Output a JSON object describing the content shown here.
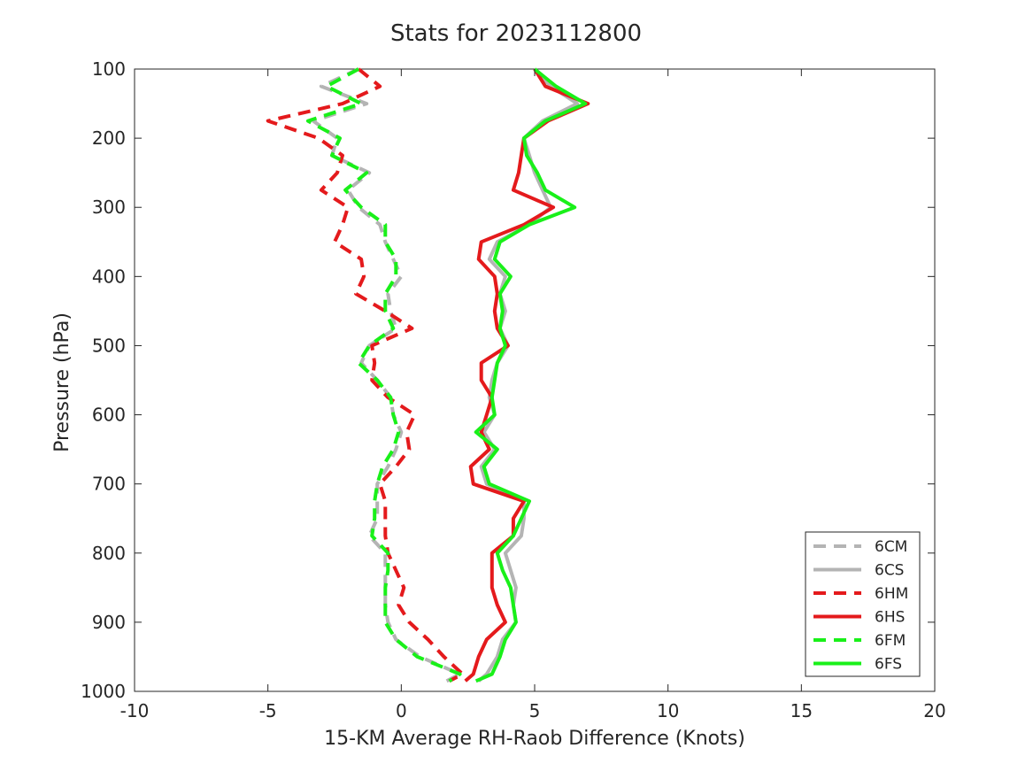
{
  "chart_data": {
    "type": "line",
    "title": "Stats for 2023112800",
    "xlabel": "15-KM Average RH-Raob Difference (Knots)",
    "ylabel": "Pressure (hPa)",
    "xlim": [
      -10,
      20
    ],
    "ylim": [
      100,
      1000
    ],
    "y_reversed": true,
    "grid": false,
    "legend_position": "bottom-right",
    "xticks": [
      "-10",
      "-5",
      "0",
      "5",
      "10",
      "15",
      "20"
    ],
    "yticks": [
      "100",
      "200",
      "300",
      "400",
      "500",
      "600",
      "700",
      "800",
      "900",
      "1000"
    ],
    "pressure": [
      100,
      125,
      150,
      175,
      200,
      225,
      250,
      275,
      300,
      325,
      350,
      375,
      400,
      425,
      450,
      475,
      500,
      525,
      550,
      575,
      600,
      625,
      650,
      675,
      700,
      725,
      750,
      775,
      800,
      825,
      850,
      875,
      900,
      925,
      950,
      975,
      985
    ],
    "series": [
      {
        "name": "6CM",
        "color": "#b4b4b4",
        "dash": "dashed",
        "values": [
          -1.6,
          -3.0,
          -1.3,
          -3.3,
          -2.4,
          -2.6,
          -1.2,
          -2.0,
          -1.6,
          -0.8,
          -0.6,
          -0.3,
          0.0,
          -0.5,
          -0.4,
          -0.2,
          -1.2,
          -1.5,
          -0.9,
          -0.4,
          -0.3,
          0.0,
          -0.2,
          -0.5,
          -0.9,
          -0.9,
          -0.9,
          -1.2,
          -0.6,
          -0.6,
          -0.6,
          -0.6,
          -0.5,
          -0.2,
          0.7,
          2.2,
          1.7
        ]
      },
      {
        "name": "6CS",
        "color": "#b4b4b4",
        "dash": "solid",
        "values": [
          5.0,
          5.6,
          6.6,
          5.3,
          4.6,
          4.8,
          5.0,
          5.3,
          5.6,
          4.8,
          3.6,
          3.3,
          3.9,
          3.7,
          3.9,
          3.7,
          4.0,
          3.6,
          3.4,
          3.3,
          3.5,
          3.1,
          3.5,
          3.0,
          3.2,
          4.6,
          4.6,
          4.5,
          3.9,
          4.1,
          4.3,
          4.2,
          4.3,
          3.8,
          3.6,
          3.2,
          2.9
        ]
      },
      {
        "name": "6HM",
        "color": "#e41a1c",
        "dash": "dashed",
        "values": [
          -1.6,
          -0.8,
          -2.2,
          -5.0,
          -3.1,
          -2.2,
          -2.4,
          -3.0,
          -2.0,
          -2.2,
          -2.5,
          -1.5,
          -1.4,
          -1.7,
          -0.6,
          0.4,
          -1.1,
          -1.0,
          -1.1,
          -0.5,
          0.5,
          0.2,
          0.3,
          -0.2,
          -0.8,
          -0.6,
          -0.6,
          -0.6,
          -0.5,
          -0.2,
          0.1,
          -0.1,
          0.3,
          1.0,
          1.6,
          2.3,
          1.8
        ]
      },
      {
        "name": "6HS",
        "color": "#e41a1c",
        "dash": "solid",
        "values": [
          5.0,
          5.4,
          7.0,
          5.5,
          4.6,
          4.5,
          4.4,
          4.2,
          5.7,
          4.6,
          3.0,
          2.9,
          3.5,
          3.6,
          3.5,
          3.6,
          4.0,
          3.0,
          3.0,
          3.4,
          3.2,
          3.0,
          3.3,
          2.6,
          2.7,
          4.6,
          4.2,
          4.2,
          3.4,
          3.4,
          3.4,
          3.6,
          3.9,
          3.2,
          2.9,
          2.7,
          2.4
        ]
      },
      {
        "name": "6FM",
        "color": "#19f019",
        "dash": "dashed",
        "values": [
          -1.6,
          -2.8,
          -1.5,
          -3.5,
          -2.3,
          -2.6,
          -1.3,
          -2.1,
          -1.5,
          -0.6,
          -0.6,
          -0.2,
          -0.2,
          -0.6,
          -0.6,
          -0.3,
          -1.2,
          -1.6,
          -0.9,
          -0.4,
          -0.3,
          -0.1,
          -0.3,
          -0.7,
          -0.9,
          -1.0,
          -1.0,
          -1.1,
          -0.5,
          -0.5,
          -0.6,
          -0.6,
          -0.6,
          -0.2,
          0.6,
          2.2,
          1.8
        ]
      },
      {
        "name": "6FS",
        "color": "#19f019",
        "dash": "solid",
        "values": [
          5.0,
          5.8,
          6.9,
          5.4,
          4.6,
          4.7,
          5.1,
          5.4,
          6.5,
          4.8,
          3.7,
          3.5,
          4.1,
          3.7,
          3.8,
          3.7,
          3.9,
          3.6,
          3.5,
          3.4,
          3.5,
          2.8,
          3.6,
          3.1,
          3.3,
          4.8,
          4.5,
          4.2,
          3.6,
          3.8,
          4.1,
          4.2,
          4.3,
          3.9,
          3.7,
          3.4,
          2.8
        ]
      }
    ]
  }
}
